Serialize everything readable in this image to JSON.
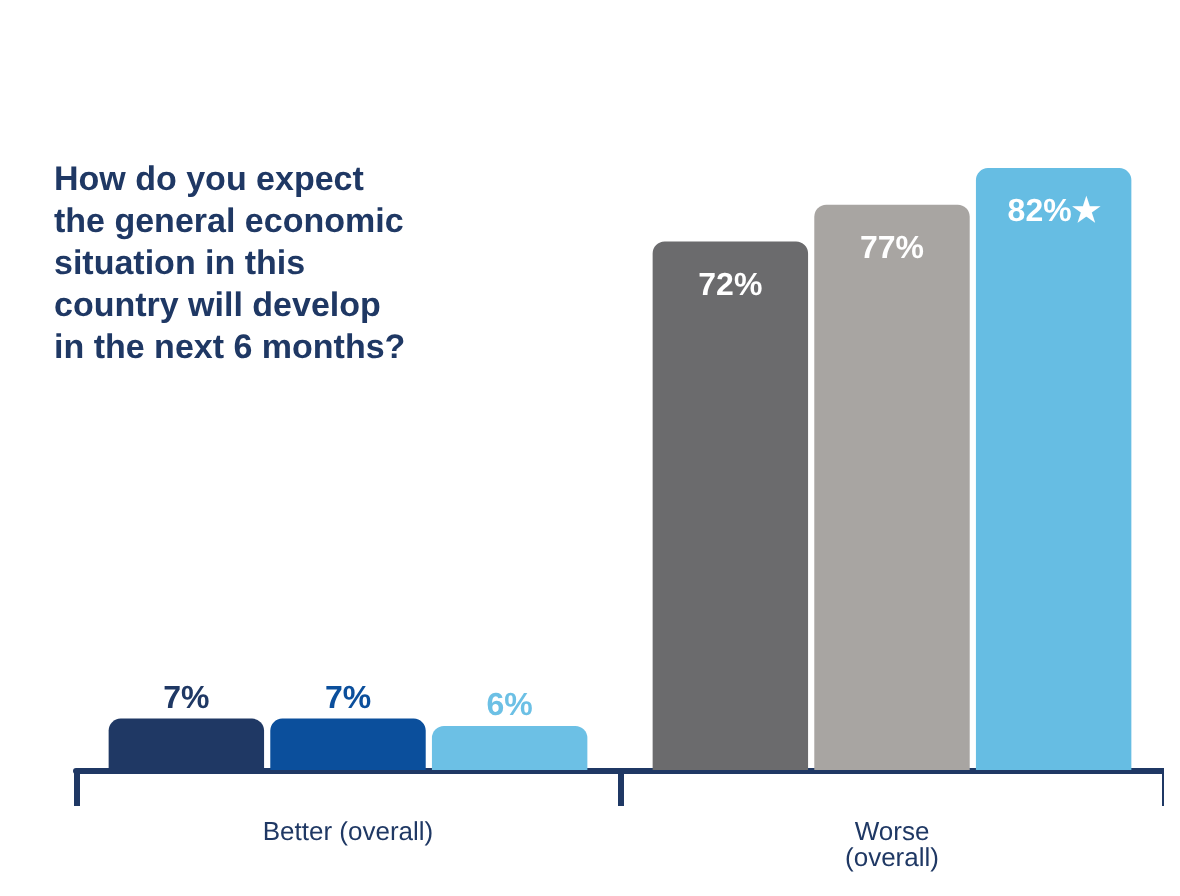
{
  "chart_data": {
    "type": "bar",
    "title": "How do you expect\nthe general economic\nsituation in this\ncountry will develop\nin the next 6 months?",
    "categories": [
      "Better (overall)",
      "Worse\n(overall)"
    ],
    "series": [
      {
        "colors": [
          "#1f3864",
          "#6b6b6d"
        ],
        "values": [
          7,
          72
        ],
        "value_labels": [
          "7%",
          "72%"
        ]
      },
      {
        "colors": [
          "#0b4f9c",
          "#a8a5a2"
        ],
        "values": [
          7,
          77
        ],
        "value_labels": [
          "7%",
          "77%"
        ]
      },
      {
        "colors": [
          "#6cc0e5",
          "#66bde3"
        ],
        "values": [
          6,
          82
        ],
        "value_labels": [
          "6%",
          "82%★"
        ]
      }
    ]
  }
}
